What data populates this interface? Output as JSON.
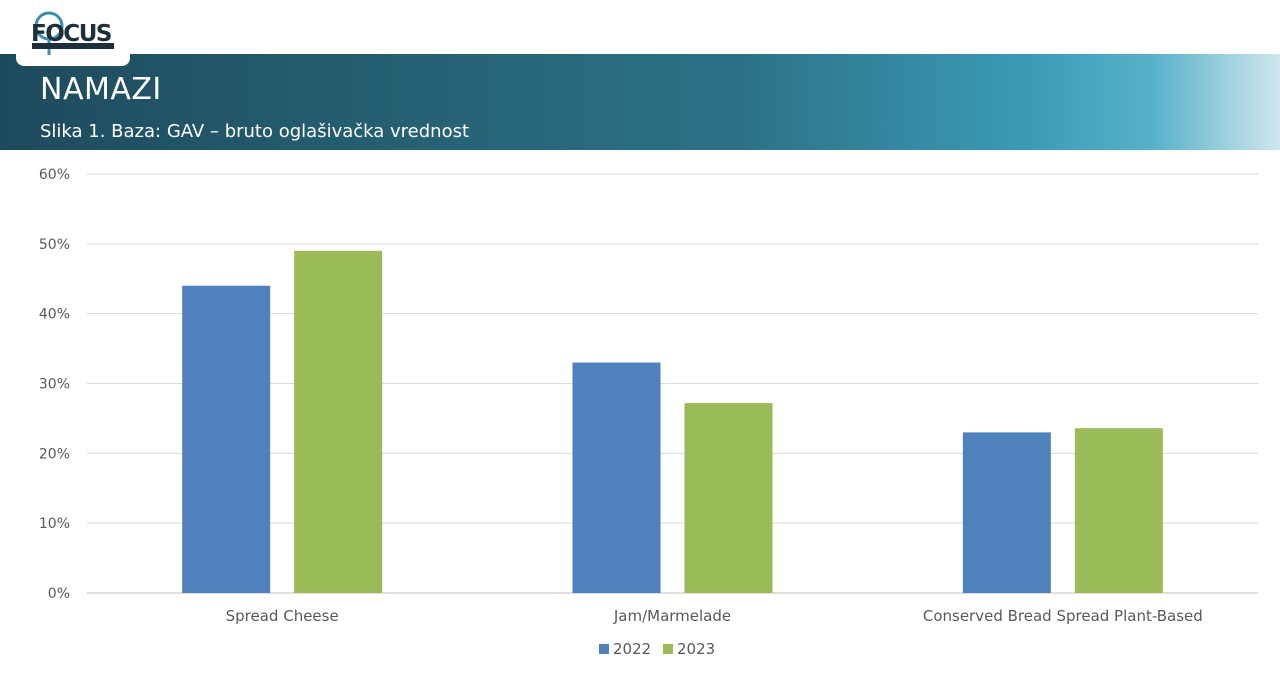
{
  "header": {
    "logo_text": "FOCUS",
    "title": "NAMAZI",
    "subtitle": "Slika 1. Baza: GAV – bruto oglašivačka vrednost"
  },
  "colors": {
    "series_2022": "#4f81bd",
    "series_2023": "#9bbb59",
    "logo_dark": "#1d2f3a",
    "logo_accent": "#3d8fb0"
  },
  "chart_data": {
    "type": "bar",
    "categories": [
      "Spread Cheese",
      "Jam/Marmelade",
      "Conserved Bread Spread Plant-Based"
    ],
    "series": [
      {
        "name": "2022",
        "values": [
          44,
          33,
          23
        ]
      },
      {
        "name": "2023",
        "values": [
          49,
          27.2,
          23.6
        ]
      }
    ],
    "ylim": [
      0,
      60
    ],
    "yticks": [
      "0%",
      "10%",
      "20%",
      "30%",
      "40%",
      "50%",
      "60%"
    ],
    "unit": "%",
    "grid": true,
    "legend_position": "bottom"
  }
}
